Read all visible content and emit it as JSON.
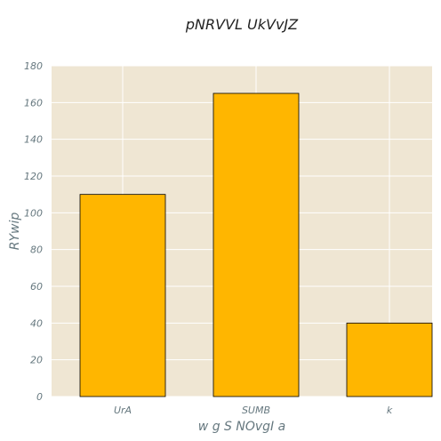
{
  "chart_data": {
    "type": "bar",
    "title": "pNRVVL UkVvJZ",
    "xlabel": "w g S NOvgI a",
    "ylabel": "RYwip",
    "categories": [
      "UrA",
      "SUMB",
      "k"
    ],
    "values": [
      110,
      165,
      40
    ],
    "ylim": [
      0,
      180
    ],
    "yticks": [
      0,
      20,
      40,
      60,
      80,
      100,
      120,
      140,
      160,
      180
    ],
    "grid": true
  },
  "colors": {
    "plot_background": "#efe6d3",
    "bar_fill": "#ffb600",
    "bar_edge": "#000000",
    "grid": "#ffffff",
    "text": "#66787f"
  }
}
